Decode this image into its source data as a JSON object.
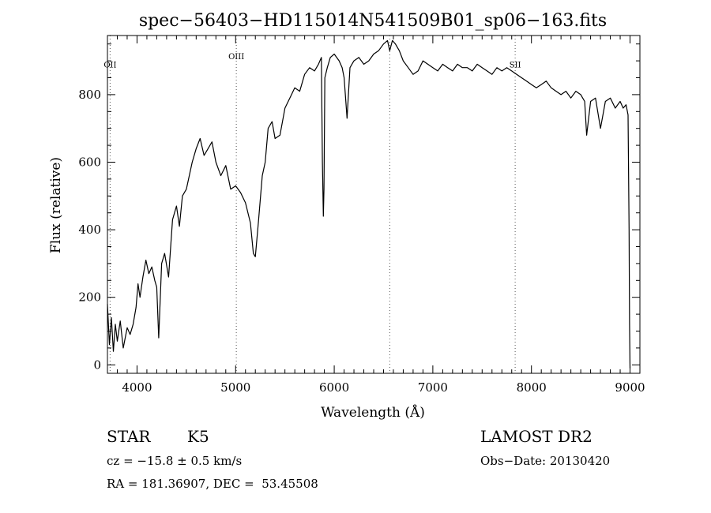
{
  "chart_data": {
    "type": "line",
    "title": "spec−56403−HD115014N541509B01_sp06−163.fits",
    "xlabel": "Wavelength (Å)",
    "ylabel": "Flux (relative)",
    "xlim": [
      3700,
      9100
    ],
    "ylim": [
      -25,
      975
    ],
    "xticks": [
      4000,
      5000,
      6000,
      7000,
      8000,
      9000
    ],
    "yticks": [
      0,
      200,
      400,
      600,
      800
    ],
    "xtick_labels": [
      "4000",
      "5000",
      "6000",
      "7000",
      "8000",
      "9000"
    ],
    "ytick_labels": [
      "0",
      "200",
      "400",
      "600",
      "800"
    ],
    "grid": false,
    "lines": [
      {
        "label": "OII",
        "x": 3727,
        "label_y": 880
      },
      {
        "label": "OIII",
        "x": 5007,
        "label_y": 905
      },
      {
        "label": "",
        "x": 6563,
        "label_y": 960
      },
      {
        "label": "SII",
        "x": 7835,
        "label_y": 880
      }
    ],
    "series": [
      {
        "x": [
          3700,
          3720,
          3740,
          3760,
          3780,
          3800,
          3830,
          3860,
          3900,
          3930,
          3960,
          3990,
          4010,
          4030,
          4060,
          4090,
          4120,
          4150,
          4180,
          4200,
          4220,
          4250,
          4280,
          4320,
          4360,
          4400,
          4430,
          4460,
          4500,
          4530,
          4560,
          4600,
          4640,
          4680,
          4720,
          4760,
          4800,
          4850,
          4900,
          4950,
          5000,
          5050,
          5100,
          5150,
          5180,
          5200,
          5230,
          5270,
          5300,
          5330,
          5370,
          5400,
          5450,
          5500,
          5550,
          5600,
          5650,
          5700,
          5750,
          5800,
          5840,
          5870,
          5880,
          5890,
          5896,
          5905,
          5930,
          5960,
          6000,
          6050,
          6080,
          6100,
          6130,
          6160,
          6200,
          6250,
          6300,
          6350,
          6400,
          6450,
          6500,
          6540,
          6563,
          6590,
          6620,
          6660,
          6700,
          6750,
          6800,
          6850,
          6900,
          6950,
          7000,
          7050,
          7100,
          7150,
          7200,
          7250,
          7300,
          7350,
          7400,
          7450,
          7500,
          7550,
          7600,
          7650,
          7700,
          7750,
          7800,
          7850,
          7900,
          7950,
          8000,
          8050,
          8100,
          8150,
          8200,
          8250,
          8300,
          8350,
          8400,
          8450,
          8500,
          8540,
          8560,
          8600,
          8650,
          8700,
          8750,
          8800,
          8850,
          8900,
          8930,
          8960,
          8980,
          8990,
          8995,
          9000
        ],
        "y": [
          180,
          60,
          140,
          40,
          120,
          70,
          130,
          50,
          110,
          90,
          120,
          170,
          240,
          200,
          260,
          310,
          270,
          290,
          250,
          230,
          80,
          300,
          330,
          260,
          430,
          470,
          410,
          500,
          520,
          560,
          600,
          640,
          670,
          620,
          640,
          660,
          600,
          560,
          590,
          520,
          530,
          510,
          480,
          420,
          330,
          320,
          420,
          560,
          600,
          700,
          720,
          670,
          680,
          760,
          790,
          820,
          810,
          860,
          880,
          870,
          890,
          910,
          600,
          440,
          520,
          850,
          880,
          910,
          920,
          900,
          880,
          850,
          730,
          880,
          900,
          910,
          890,
          900,
          920,
          930,
          950,
          960,
          930,
          960,
          950,
          930,
          900,
          880,
          860,
          870,
          900,
          890,
          880,
          870,
          890,
          880,
          870,
          890,
          880,
          880,
          870,
          890,
          880,
          870,
          860,
          880,
          870,
          880,
          870,
          860,
          850,
          840,
          830,
          820,
          830,
          840,
          820,
          810,
          800,
          810,
          790,
          810,
          800,
          780,
          680,
          780,
          790,
          700,
          780,
          790,
          760,
          780,
          760,
          770,
          740,
          400,
          120,
          -10
        ]
      }
    ]
  },
  "info": {
    "object_type": "STAR",
    "subclass": "K5",
    "survey": "LAMOST DR2",
    "cz": "cz = −15.8 ± 0.5 km/s",
    "obs_date": "Obs−Date: 20130420",
    "coords": "RA = 181.36907, DEC =  53.45508"
  }
}
